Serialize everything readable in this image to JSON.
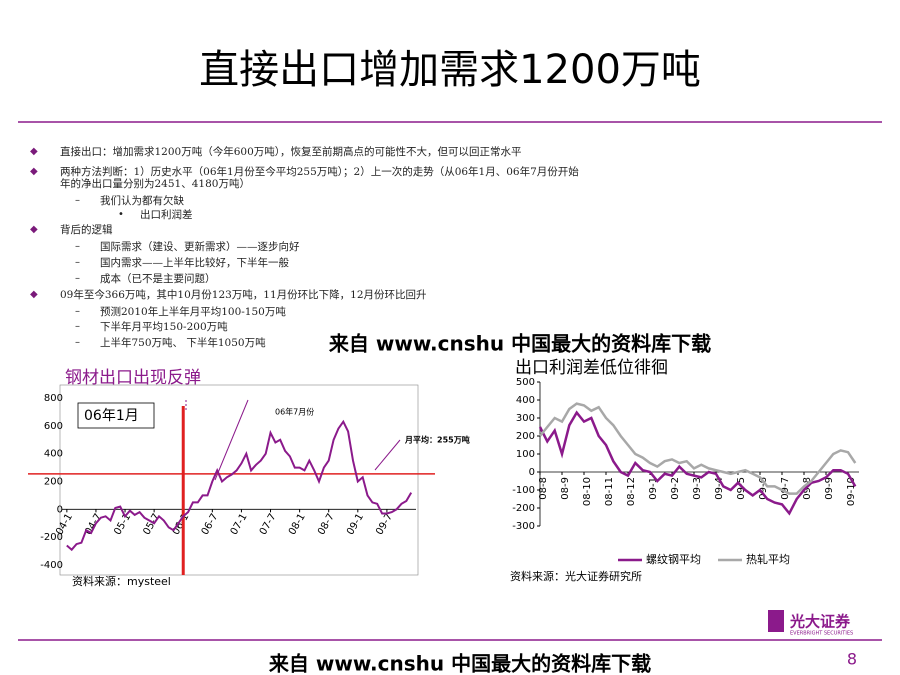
{
  "title": "直接出口增加需求1200万吨",
  "bullets": [
    {
      "level": 0,
      "lines": [
        "直接出口：增加需求1200万吨（今年600万吨），恢复至前期高点的可能性不大，但可以回正常水平"
      ]
    },
    {
      "level": 0,
      "lines": [
        "两种方法判断：1）历史水平（06年1月份至今平均255万吨）；2）上一次的走势（从06年1月、06年7月份开始",
        "年的净出口量分别为2451、4180万吨）"
      ]
    },
    {
      "level": 1,
      "lines": [
        "我们认为都有欠缺"
      ]
    },
    {
      "level": 2,
      "lines": [
        "出口利润差"
      ]
    },
    {
      "level": 0,
      "lines": [
        "背后的逻辑"
      ]
    },
    {
      "level": 1,
      "lines": [
        "国际需求（建设、更新需求）——逐步向好"
      ]
    },
    {
      "level": 1,
      "lines": [
        "国内需求——上半年比较好，下半年一般"
      ]
    },
    {
      "level": 1,
      "lines": [
        "成本（已不是主要问题）"
      ]
    },
    {
      "level": 0,
      "lines": [
        "09年至今366万吨，其中10月份123万吨，11月份环比下降，12月份环比回升"
      ]
    },
    {
      "level": 1,
      "lines": [
        "预测2010年上半年月平均100-150万吨"
      ]
    },
    {
      "level": 1,
      "lines": [
        "下半年月平均150-200万吨"
      ]
    },
    {
      "level": 1,
      "lines": [
        "上半年750万吨、 下半年1050万吨"
      ]
    }
  ],
  "watermark": "来自 www.cnshu 中国最大的资料库下载",
  "footer_watermark": "来自 www.cnshu 中国最大的资料库下载",
  "page_number": "8",
  "logo": {
    "name": "光大证券",
    "english": "EVERBRIGHT SECURITIES"
  },
  "chart_data": [
    {
      "type": "line",
      "title": "钢材出口出现反弹",
      "source": "资料来源：mysteel",
      "annotations": [
        "06年1月",
        "06年7月份",
        "月平均：255万吨"
      ],
      "hline": 255,
      "vline": 24,
      "hline_color": "#e02020",
      "vline_color": "#e02020",
      "x": [
        0,
        1,
        2,
        3,
        4,
        5,
        6,
        7,
        8,
        9,
        10,
        11,
        12,
        13,
        14,
        15,
        16,
        17,
        18,
        19,
        20,
        21,
        22,
        23,
        24,
        25,
        26,
        27,
        28,
        29,
        30,
        31,
        32,
        33,
        34,
        35,
        36,
        37,
        38,
        39,
        40,
        41,
        42,
        43,
        44,
        45,
        46,
        47,
        48,
        49,
        50,
        51,
        52,
        53,
        54,
        55,
        56,
        57,
        58,
        59,
        60,
        61,
        62,
        63,
        64,
        65,
        66,
        67,
        68,
        69,
        70,
        71
      ],
      "series": [
        {
          "color": "#8b1a8b",
          "values": [
            -260,
            -290,
            -250,
            -240,
            -150,
            -170,
            -100,
            -60,
            -50,
            -80,
            10,
            20,
            -50,
            -10,
            -40,
            -20,
            -60,
            -80,
            -100,
            -50,
            -80,
            -130,
            -150,
            -100,
            -50,
            -20,
            50,
            50,
            100,
            100,
            200,
            280,
            200,
            230,
            250,
            280,
            330,
            400,
            280,
            320,
            350,
            400,
            550,
            480,
            500,
            420,
            380,
            300,
            300,
            280,
            350,
            280,
            200,
            300,
            350,
            500,
            580,
            630,
            560,
            350,
            200,
            230,
            100,
            50,
            40,
            -30,
            -30,
            -20,
            0,
            40,
            60,
            120
          ]
        }
      ],
      "xlim": [
        -1,
        72
      ],
      "ylim": [
        -400,
        800
      ],
      "xticks": [
        {
          "value": 0,
          "label": "04-1"
        },
        {
          "value": 6,
          "label": "04-7"
        },
        {
          "value": 12,
          "label": "05-1"
        },
        {
          "value": 18,
          "label": "05-7"
        },
        {
          "value": 24,
          "label": "06-1"
        },
        {
          "value": 30,
          "label": "06-7"
        },
        {
          "value": 36,
          "label": "07-1"
        },
        {
          "value": 42,
          "label": "07-7"
        },
        {
          "value": 48,
          "label": "08-1"
        },
        {
          "value": 54,
          "label": "08-7"
        },
        {
          "value": 60,
          "label": "09-1"
        },
        {
          "value": 66,
          "label": "09-7"
        }
      ],
      "yticks": [
        -400,
        -200,
        0,
        200,
        400,
        600,
        800
      ]
    },
    {
      "type": "line",
      "title": "出口利润差低位徘徊",
      "source": "资料来源：光大证券研究所",
      "x": [
        0,
        0.33,
        0.67,
        1,
        1.33,
        1.67,
        2,
        2.33,
        2.67,
        3,
        3.33,
        3.67,
        4,
        4.33,
        4.67,
        5,
        5.33,
        5.67,
        6,
        6.33,
        6.67,
        7,
        7.33,
        7.67,
        8,
        8.33,
        8.67,
        9,
        9.33,
        9.67,
        10,
        10.33,
        10.67,
        11,
        11.33,
        11.67,
        12,
        12.33,
        12.67,
        13,
        13.33,
        13.67,
        14,
        14.33
      ],
      "series": [
        {
          "name": "螺纹钢平均",
          "color": "#8b1a8b",
          "values": [
            250,
            170,
            230,
            100,
            260,
            330,
            280,
            300,
            200,
            150,
            60,
            0,
            -20,
            50,
            10,
            0,
            -50,
            -10,
            -20,
            30,
            -10,
            -20,
            -30,
            0,
            -10,
            -80,
            -100,
            -60,
            -100,
            -130,
            -100,
            -150,
            -170,
            -180,
            -230,
            -150,
            -100,
            -60,
            -50,
            -30,
            10,
            10,
            -10,
            -80
          ]
        },
        {
          "name": "热轧平均",
          "color": "#a8a8a8",
          "values": [
            200,
            250,
            300,
            280,
            350,
            380,
            370,
            340,
            360,
            300,
            260,
            200,
            150,
            100,
            80,
            50,
            30,
            60,
            70,
            50,
            60,
            20,
            40,
            20,
            10,
            0,
            -10,
            0,
            10,
            -10,
            -30,
            -80,
            -80,
            -100,
            -120,
            -120,
            -80,
            -50,
            0,
            50,
            100,
            120,
            110,
            50
          ]
        }
      ],
      "xlim": [
        0,
        14.5
      ],
      "ylim": [
        -300,
        500
      ],
      "xticks": [
        {
          "value": 0,
          "label": "08-8"
        },
        {
          "value": 1,
          "label": "08-9"
        },
        {
          "value": 2,
          "label": "08-10"
        },
        {
          "value": 3,
          "label": "08-11"
        },
        {
          "value": 4,
          "label": "08-12"
        },
        {
          "value": 5,
          "label": "09-1"
        },
        {
          "value": 6,
          "label": "09-2"
        },
        {
          "value": 7,
          "label": "09-3"
        },
        {
          "value": 8,
          "label": "09-4"
        },
        {
          "value": 9,
          "label": "09-5"
        },
        {
          "value": 10,
          "label": "09-6"
        },
        {
          "value": 11,
          "label": "09-7"
        },
        {
          "value": 12,
          "label": "09-8"
        },
        {
          "value": 13,
          "label": "09-9"
        },
        {
          "value": 14,
          "label": "09-10"
        }
      ],
      "yticks": [
        -300,
        -200,
        -100,
        0,
        100,
        200,
        300,
        400,
        500
      ]
    }
  ]
}
